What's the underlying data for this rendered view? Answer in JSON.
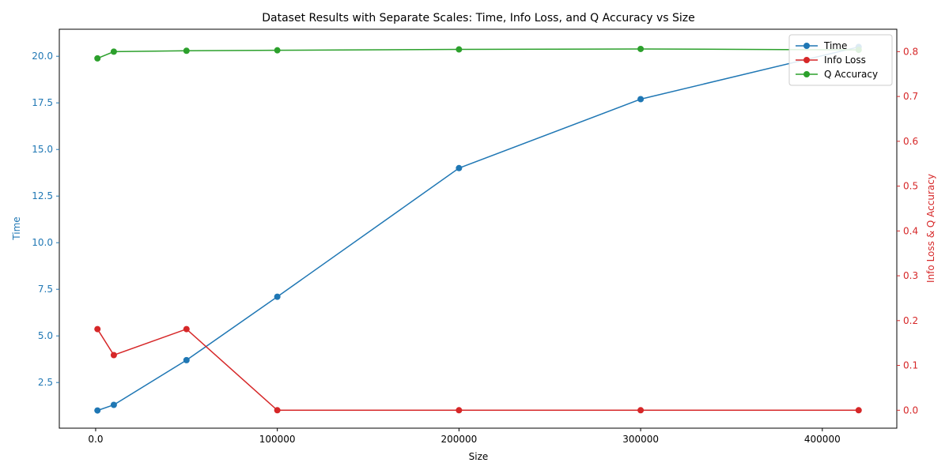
{
  "chart_data": {
    "type": "line",
    "title": "Dataset Results with Separate Scales: Time, Info Loss, and Q Accuracy vs Size",
    "xlabel": "Size",
    "ylabel_left": "Time",
    "ylabel_right": "Info Loss & Q Accuracy",
    "x": [
      1000,
      10000,
      50000,
      100000,
      200000,
      300000,
      420000
    ],
    "xlim": [
      -20000,
      441000
    ],
    "ylim_left": [
      0.05,
      21.45
    ],
    "ylim_right": [
      -0.04,
      0.85
    ],
    "x_ticks": [
      0,
      100000,
      200000,
      300000,
      400000
    ],
    "y_ticks_left": [
      2.5,
      5.0,
      7.5,
      10.0,
      12.5,
      15.0,
      17.5,
      20.0
    ],
    "y_ticks_right": [
      0.0,
      0.1,
      0.2,
      0.3,
      0.4,
      0.5,
      0.6,
      0.7,
      0.8
    ],
    "grid": false,
    "legend_position": "top-right",
    "series": [
      {
        "name": "Time",
        "axis": "left",
        "color": "#1f77b4",
        "values": [
          1.0,
          1.3,
          3.7,
          7.1,
          14.0,
          17.7,
          20.5
        ]
      },
      {
        "name": "Info Loss",
        "axis": "right",
        "color": "#d62728",
        "values": [
          0.181,
          0.123,
          0.181,
          0.0,
          0.0,
          0.0,
          0.0
        ]
      },
      {
        "name": "Q Accuracy",
        "axis": "right",
        "color": "#2ca02c",
        "values": [
          0.785,
          0.8,
          0.802,
          0.803,
          0.805,
          0.806,
          0.804
        ]
      }
    ]
  }
}
